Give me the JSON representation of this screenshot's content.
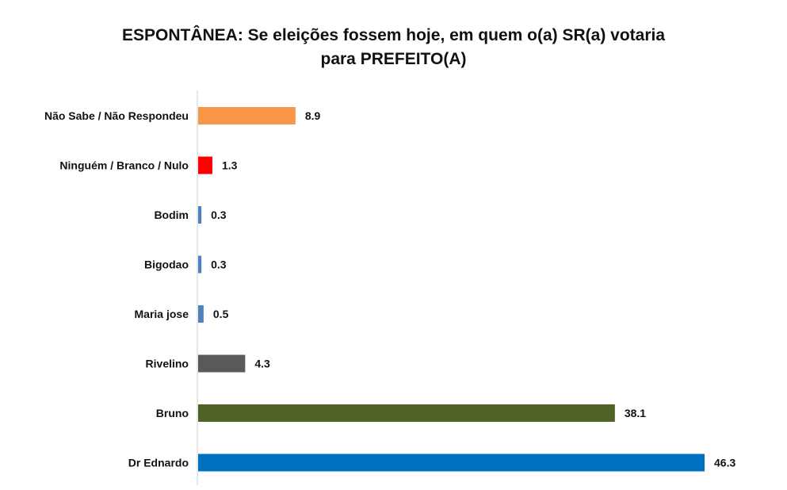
{
  "chart_data": {
    "type": "bar",
    "orientation": "horizontal",
    "title": "ESPONTÂNEA: Se eleições fossem hoje, em quem o(a) SR(a) votaria para PREFEITO(A)",
    "title_lines": [
      "ESPONTÂNEA: Se eleições fossem hoje, em quem o(a) SR(a) votaria",
      "para PREFEITO(A)"
    ],
    "categories": [
      "Não Sabe / Não Respondeu",
      "Ninguém / Branco / Nulo",
      "Bodim",
      "Bigodao",
      "Maria jose",
      "Rivelino",
      "Bruno",
      "Dr Ednardo"
    ],
    "values": [
      8.9,
      1.3,
      0.3,
      0.3,
      0.5,
      4.3,
      38.1,
      46.3
    ],
    "value_labels": [
      "8.9",
      "1.3",
      "0.3",
      "0.3",
      "0.5",
      "4.3",
      "38.1",
      "46.3"
    ],
    "colors": [
      "#f79646",
      "#ff0000",
      "#4f81bd",
      "#4f81bd",
      "#4f81bd",
      "#595959",
      "#4f6228",
      "#0070c0"
    ],
    "xlabel": "",
    "ylabel": "",
    "xlim": [
      0,
      46.3
    ],
    "grid": false,
    "legend": "none"
  }
}
